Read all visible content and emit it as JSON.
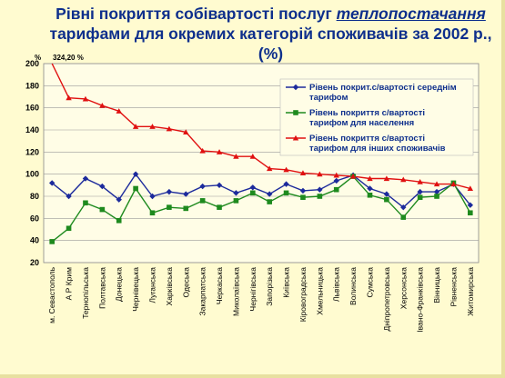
{
  "title": {
    "line1_prefix": "Рівні покриття  собівартості послуг ",
    "line1_emph": "теплопостачання",
    "line2": "тарифами для  окремих категорій споживачів за 2002 р., (%)"
  },
  "colors": {
    "background": "#fffbd0",
    "title": "#0e2f8c",
    "series1": "#1c2a9c",
    "series2": "#1e8a1e",
    "series3": "#e01010"
  },
  "chart_data": {
    "type": "line",
    "ylim": [
      20,
      200
    ],
    "yticks": [
      20,
      40,
      60,
      80,
      100,
      120,
      140,
      160,
      180,
      200
    ],
    "y_unit": "%",
    "grid": true,
    "legend_position": "top-right",
    "annotation": "324,20 %",
    "categories": [
      "м. Севастополь",
      "А Р Крим",
      "Тернопільська",
      "Полтавська",
      "Донецька",
      "Чернівецька",
      "Луганська",
      "Харківська",
      "Одеська",
      "Закарпатська",
      "Черкаська",
      "Миколаївська",
      "Чернігівська",
      "Запорізька",
      "Київська",
      "Кіровоградська",
      "Хмельницька",
      "Львівська",
      "Волинська",
      "Сумська",
      "Дніпропетровська",
      "Херсонська",
      "Івано-Франківська",
      "Вінницька",
      "Рівненська",
      "Житомирська"
    ],
    "series": [
      {
        "name": "Рівень покрит.с/вартості середнім тарифом",
        "values": [
          92,
          80,
          96,
          89,
          77,
          100,
          80,
          84,
          82,
          89,
          90,
          83,
          88,
          82,
          91,
          85,
          86,
          94,
          99,
          87,
          82,
          70,
          84,
          84,
          91,
          72
        ]
      },
      {
        "name": "Рівень покриття с/вартості тарифом для населення",
        "values": [
          39,
          51,
          74,
          68,
          58,
          87,
          65,
          70,
          69,
          76,
          70,
          76,
          83,
          75,
          83,
          79,
          80,
          86,
          98,
          81,
          77,
          61,
          79,
          80,
          92,
          65
        ]
      },
      {
        "name": "Рівень покриття с/вартості тарифом для інших споживачів",
        "values": [
          324.2,
          169,
          168,
          162,
          157,
          143,
          143,
          141,
          138,
          121,
          120,
          116,
          116,
          105,
          104,
          101,
          100,
          99,
          98,
          96,
          96,
          95,
          93,
          91,
          91,
          87
        ]
      }
    ]
  }
}
